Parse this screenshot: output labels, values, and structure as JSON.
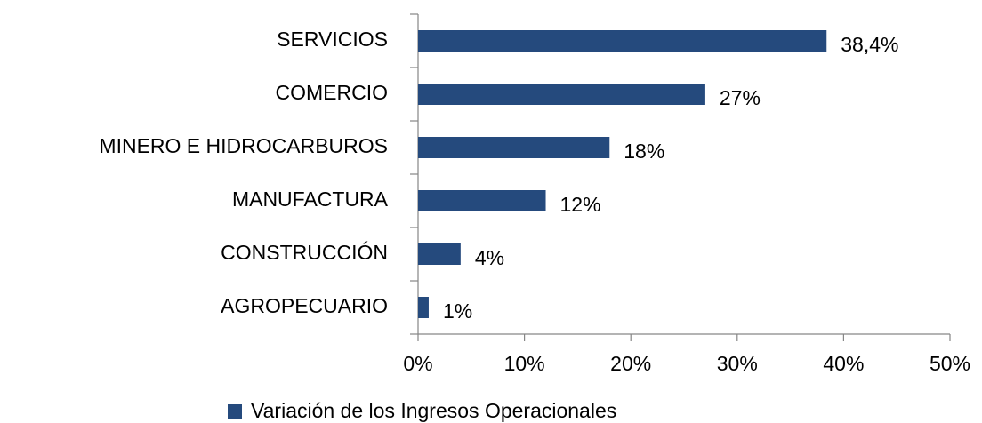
{
  "chart_data": {
    "type": "bar",
    "orientation": "horizontal",
    "categories": [
      "SERVICIOS",
      "COMERCIO",
      "MINERO E HIDROCARBUROS",
      "MANUFACTURA",
      "CONSTRUCCIÓN",
      "AGROPECUARIO"
    ],
    "series": [
      {
        "name": "Variación de los Ingresos Operacionales",
        "color": "#254a7d",
        "values": [
          38.4,
          27,
          18,
          12,
          4,
          1
        ],
        "value_labels": [
          "38,4%",
          "27%",
          "18%",
          "12%",
          "4%",
          "1%"
        ]
      }
    ],
    "xlim": [
      0,
      50
    ],
    "xticks": [
      {
        "value": 0,
        "label": "0%"
      },
      {
        "value": 10,
        "label": "10%"
      },
      {
        "value": 20,
        "label": "20%"
      },
      {
        "value": 30,
        "label": "30%"
      },
      {
        "value": 40,
        "label": "40%"
      },
      {
        "value": 50,
        "label": "50%"
      }
    ],
    "legend": "bottom"
  }
}
